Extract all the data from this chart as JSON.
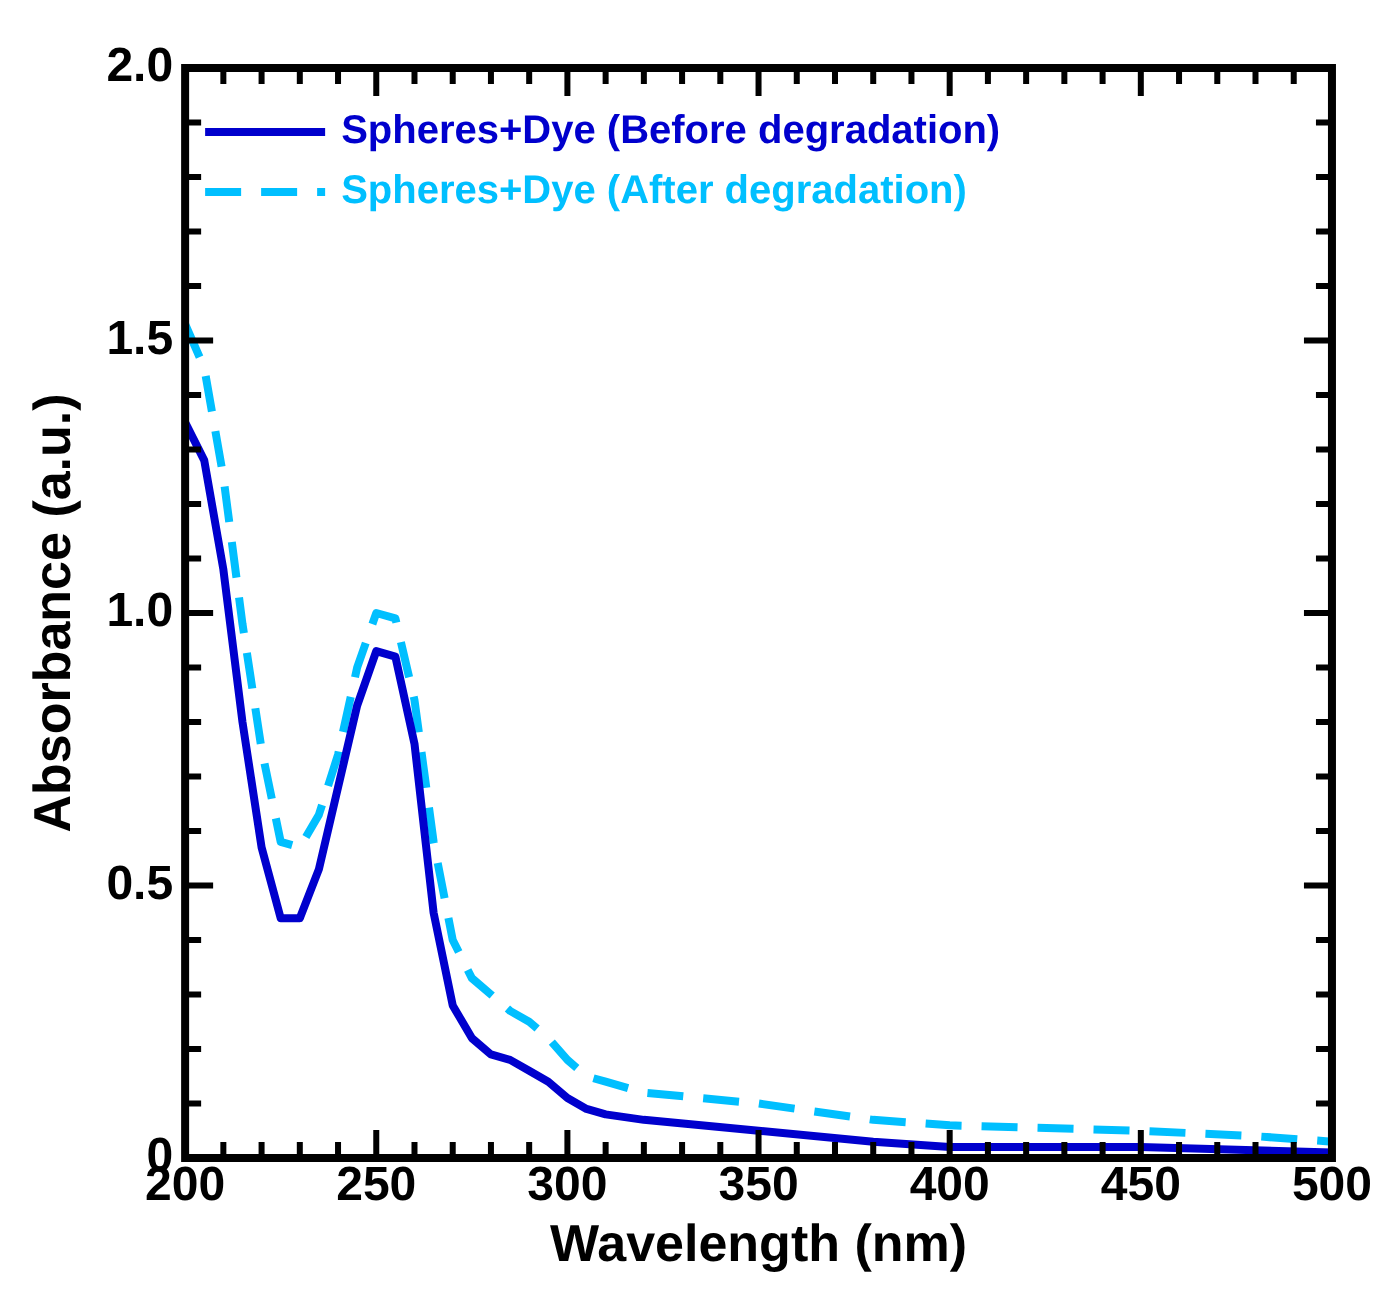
{
  "chart_data": {
    "type": "line",
    "xlabel": "Wavelength (nm)",
    "ylabel": "Absorbance (a.u.)",
    "xlim": [
      200,
      500
    ],
    "ylim": [
      0,
      2
    ],
    "xticks": [
      200,
      {
        "value": 210,
        "label": null
      },
      {
        "value": 220,
        "label": null
      },
      {
        "value": 230,
        "label": null
      },
      {
        "value": 240,
        "label": null
      },
      250,
      {
        "value": 260,
        "label": null
      },
      {
        "value": 270,
        "label": null
      },
      {
        "value": 280,
        "label": null
      },
      {
        "value": 290,
        "label": null
      },
      300,
      {
        "value": 310,
        "label": null
      },
      {
        "value": 320,
        "label": null
      },
      {
        "value": 330,
        "label": null
      },
      {
        "value": 340,
        "label": null
      },
      350,
      {
        "value": 360,
        "label": null
      },
      {
        "value": 370,
        "label": null
      },
      {
        "value": 380,
        "label": null
      },
      {
        "value": 390,
        "label": null
      },
      400,
      {
        "value": 410,
        "label": null
      },
      {
        "value": 420,
        "label": null
      },
      {
        "value": 430,
        "label": null
      },
      {
        "value": 440,
        "label": null
      },
      450,
      {
        "value": 460,
        "label": null
      },
      {
        "value": 470,
        "label": null
      },
      {
        "value": 480,
        "label": null
      },
      {
        "value": 490,
        "label": null
      },
      500
    ],
    "yticks": [
      0,
      {
        "value": 0.1,
        "label": null
      },
      {
        "value": 0.2,
        "label": null
      },
      {
        "value": 0.3,
        "label": null
      },
      {
        "value": 0.4,
        "label": null
      },
      {
        "value": 0.5,
        "label": "0.5"
      },
      {
        "value": 0.6,
        "label": null
      },
      {
        "value": 0.7,
        "label": null
      },
      {
        "value": 0.8,
        "label": null
      },
      {
        "value": 0.9,
        "label": null
      },
      {
        "value": 1,
        "label": "1.0"
      },
      {
        "value": 1.1,
        "label": null
      },
      {
        "value": 1.2,
        "label": null
      },
      {
        "value": 1.3,
        "label": null
      },
      {
        "value": 1.4,
        "label": null
      },
      {
        "value": 1.5,
        "label": "1.5"
      },
      {
        "value": 1.6,
        "label": null
      },
      {
        "value": 1.7,
        "label": null
      },
      {
        "value": 1.8,
        "label": null
      },
      {
        "value": 1.9,
        "label": null
      },
      {
        "value": 2,
        "label": "2.0"
      }
    ],
    "grid": false,
    "legend": "top left",
    "marker": "none",
    "series": [
      {
        "name": "Spheres+Dye (Before degradation)",
        "color": "#0000cd",
        "line_style": "solid",
        "x": [
          200,
          205,
          210,
          215,
          220,
          225,
          230,
          235,
          240,
          245,
          250,
          255,
          260,
          265,
          270,
          275,
          280,
          285,
          290,
          295,
          300,
          305,
          310,
          320,
          350,
          380,
          400,
          450,
          500
        ],
        "values": [
          1.35,
          1.28,
          1.08,
          0.8,
          0.57,
          0.44,
          0.44,
          0.53,
          0.68,
          0.83,
          0.93,
          0.92,
          0.76,
          0.45,
          0.28,
          0.22,
          0.19,
          0.18,
          0.16,
          0.14,
          0.11,
          0.09,
          0.08,
          0.07,
          0.05,
          0.03,
          0.02,
          0.02,
          0.01
        ]
      },
      {
        "name": "Spheres+Dye (After degradation)",
        "color": "#00bfff",
        "line_style": "dashed",
        "x": [
          200,
          205,
          210,
          215,
          220,
          225,
          230,
          235,
          240,
          245,
          250,
          255,
          260,
          265,
          270,
          275,
          280,
          285,
          290,
          295,
          300,
          305,
          310,
          320,
          350,
          380,
          400,
          450,
          480,
          500
        ],
        "values": [
          1.53,
          1.45,
          1.25,
          0.98,
          0.75,
          0.58,
          0.57,
          0.63,
          0.74,
          0.9,
          1.0,
          0.99,
          0.84,
          0.58,
          0.4,
          0.33,
          0.3,
          0.27,
          0.25,
          0.22,
          0.18,
          0.15,
          0.14,
          0.12,
          0.1,
          0.07,
          0.06,
          0.05,
          0.04,
          0.03
        ]
      }
    ]
  }
}
